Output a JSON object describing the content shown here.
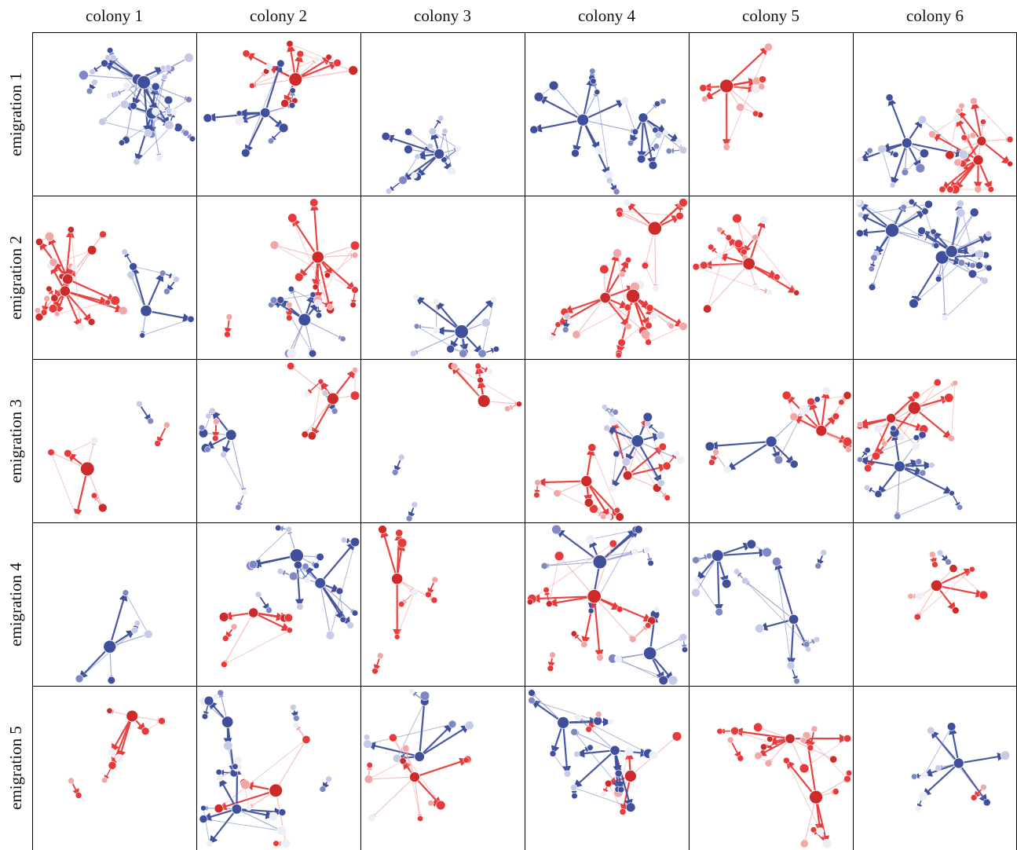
{
  "columns": [
    "colony 1",
    "colony 2",
    "colony 3",
    "colony 4",
    "colony 5",
    "colony 6"
  ],
  "rows": [
    "emigration 1",
    "emigration 2",
    "emigration 3",
    "emigration 4",
    "emigration 5"
  ],
  "colors": {
    "blue_dark": "#3f4f9c",
    "blue_mid": "#7f88c2",
    "blue_light": "#c6cae6",
    "red_dark": "#cf2a2a",
    "red_bright": "#e83a3a",
    "red_light": "#f2a7a7",
    "pale": "#eeeef6",
    "frame": "#000000"
  }
}
